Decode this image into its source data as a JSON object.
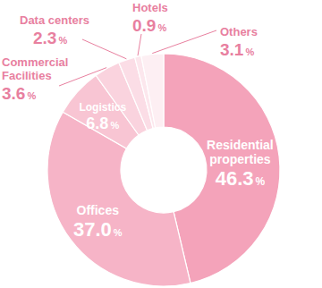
{
  "chart_data": {
    "type": "pie",
    "categories": [
      "Residential properties",
      "Offices",
      "Logistics",
      "Commercial Facilities",
      "Data centers",
      "Hotels",
      "Others"
    ],
    "values": [
      46.3,
      37.0,
      6.8,
      3.6,
      2.3,
      0.9,
      3.1
    ],
    "value_labels": [
      "46.3%",
      "37.0%",
      "6.8%",
      "3.6%",
      "2.3%",
      "0.9%",
      "3.1%"
    ],
    "colors": [
      "#f4a3ba",
      "#f6b4c7",
      "#f8c5d3",
      "#fad3de",
      "#fbdde6",
      "#fce7ed",
      "#fdeff3"
    ],
    "data_labels": true
  }
}
